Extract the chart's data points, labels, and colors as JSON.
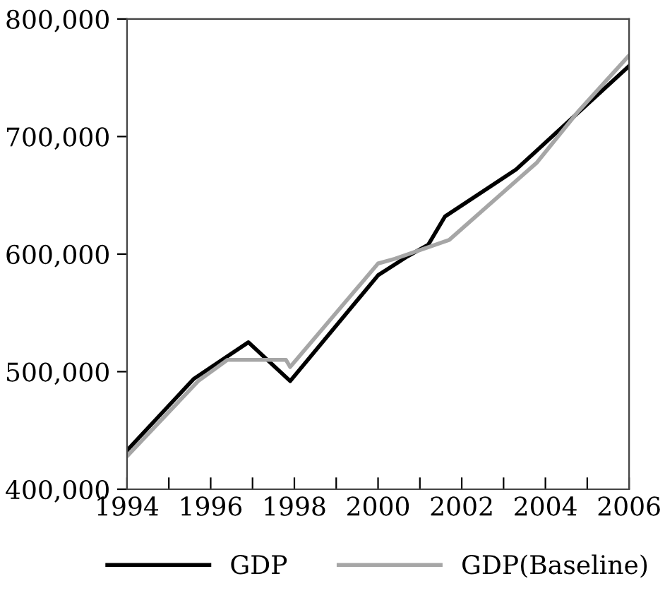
{
  "chart_data": {
    "type": "line",
    "xlim": [
      1994,
      2006
    ],
    "ylim": [
      400000,
      800000
    ],
    "xticks": [
      1994,
      {
        "value": 1995,
        "label": null
      },
      1996,
      {
        "value": 1997,
        "label": null
      },
      1998,
      {
        "value": 1999,
        "label": null
      },
      2000,
      {
        "value": 2001,
        "label": null
      },
      2002,
      {
        "value": 2003,
        "label": null
      },
      2004,
      {
        "value": 2005,
        "label": null
      },
      2006
    ],
    "yticks": [
      {
        "value": 400000,
        "label": "400,000"
      },
      {
        "value": 500000,
        "label": "500,000"
      },
      {
        "value": 600000,
        "label": "600,000"
      },
      {
        "value": 700000,
        "label": "700,000"
      },
      {
        "value": 800000,
        "label": "800,000"
      }
    ],
    "grid": false,
    "legend": "bottom",
    "marker": "none",
    "line_style": "solid",
    "series": [
      {
        "name": "GDP",
        "color": "#000000",
        "x": [
          1994,
          1995.6,
          1996.9,
          1997.9,
          2000.0,
          2000.7,
          2001.2,
          2001.6,
          2003.3,
          2006
        ],
        "values": [
          433000,
          494000,
          525000,
          492000,
          582000,
          598000,
          608000,
          632000,
          672000,
          760000
        ]
      },
      {
        "name": "GDP(Baseline)",
        "color": "#a6a6a6",
        "x": [
          1994,
          1995.7,
          1996.4,
          1997.8,
          1997.9,
          2000.0,
          2000.4,
          2001.7,
          2003.8,
          2004.8,
          2006
        ],
        "values": [
          428000,
          492000,
          510000,
          510000,
          504000,
          592000,
          596000,
          612000,
          678000,
          722000,
          769000
        ]
      }
    ]
  }
}
